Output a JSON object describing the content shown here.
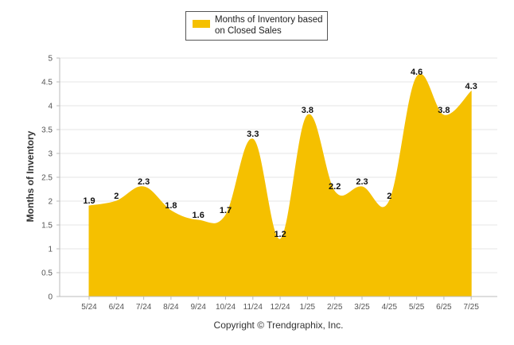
{
  "chart_data": {
    "type": "area",
    "categories": [
      "5/24",
      "6/24",
      "7/24",
      "8/24",
      "9/24",
      "10/24",
      "11/24",
      "12/24",
      "1/25",
      "2/25",
      "3/25",
      "4/25",
      "5/25",
      "6/25",
      "7/25"
    ],
    "series": [
      {
        "name": "Months of Inventory based on Closed Sales",
        "values": [
          1.9,
          2,
          2.3,
          1.8,
          1.6,
          1.7,
          3.3,
          1.2,
          3.8,
          2.2,
          2.3,
          2,
          4.6,
          3.8,
          4.3
        ]
      }
    ],
    "title": "",
    "xlabel": "",
    "ylabel": "Months of Inventory",
    "ylim": [
      0,
      5
    ],
    "yticks": [
      "0",
      "0.5",
      "1",
      "1.5",
      "2",
      "2.5",
      "3",
      "3.5",
      "4",
      "4.5",
      "5"
    ],
    "legend": {
      "label_line1": "Months of Inventory based",
      "label_line2": "on Closed Sales",
      "placement": "top-center"
    },
    "grid": true,
    "colors": {
      "area": "#f5c000",
      "grid": "#e6e6e6",
      "axis": "#bbbbbb"
    },
    "footer": "Copyright © Trendgraphix, Inc."
  }
}
